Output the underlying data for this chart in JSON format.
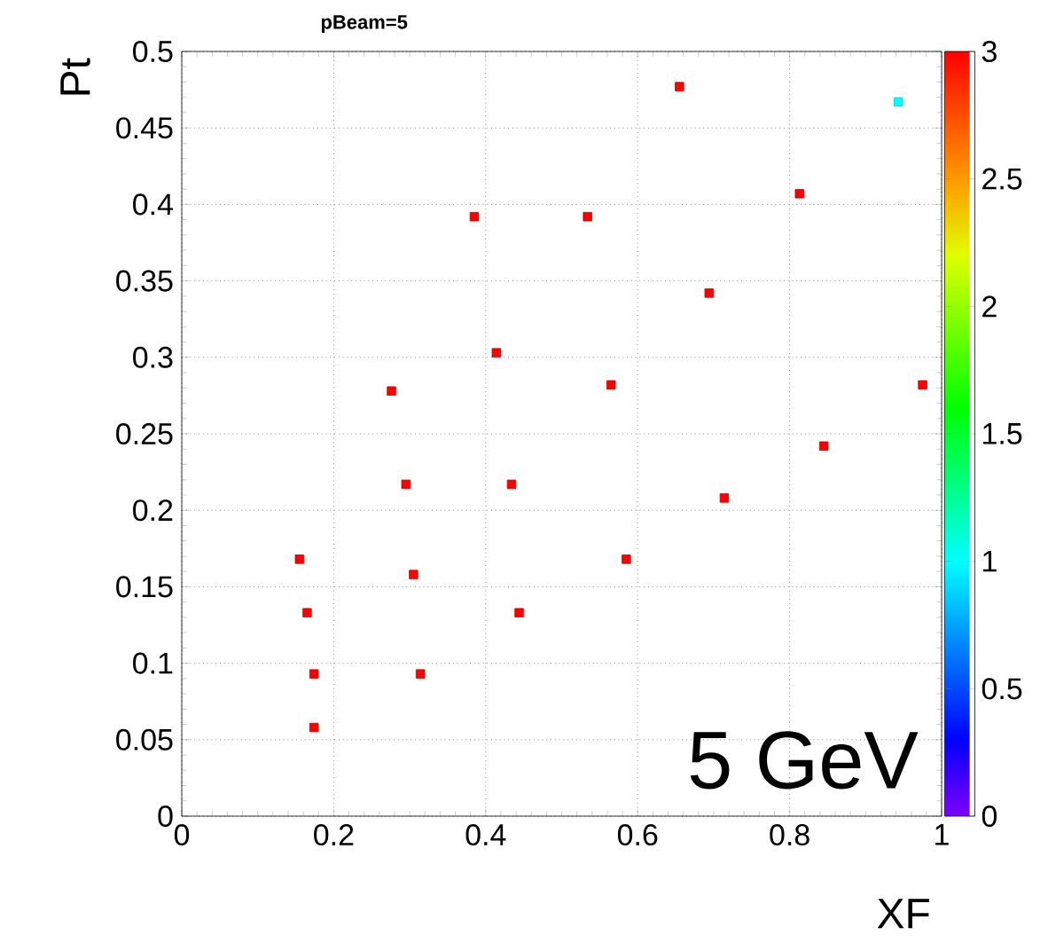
{
  "chart_data": {
    "type": "scatter",
    "title": "pBeam=5",
    "xlabel": "XF",
    "ylabel": "Pt",
    "annotations": [
      "5 GeV"
    ],
    "x": [
      0.655,
      0.943,
      0.813,
      0.385,
      0.534,
      0.694,
      0.414,
      0.276,
      0.565,
      0.975,
      0.845,
      0.295,
      0.434,
      0.714,
      0.155,
      0.585,
      0.305,
      0.165,
      0.444,
      0.174,
      0.314,
      0.174
    ],
    "values": [
      0.477,
      0.467,
      0.407,
      0.392,
      0.392,
      0.342,
      0.303,
      0.278,
      0.282,
      0.282,
      0.242,
      0.217,
      0.217,
      0.208,
      0.168,
      0.168,
      0.158,
      0.133,
      0.133,
      0.093,
      0.093,
      0.058
    ],
    "cvalues": [
      3,
      1,
      3,
      3,
      3,
      3,
      3,
      3,
      3,
      3,
      3,
      3,
      3,
      3,
      3,
      3,
      3,
      3,
      3,
      3,
      3,
      3
    ],
    "xlim": [
      0,
      1
    ],
    "ylim": [
      0,
      0.5
    ],
    "xticks": [
      0,
      0.2,
      0.4,
      0.6,
      0.8,
      1
    ],
    "yticks": [
      0,
      0.05,
      0.1,
      0.15,
      0.2,
      0.25,
      0.3,
      0.35,
      0.4,
      0.45,
      0.5
    ],
    "clim": [
      0,
      3
    ],
    "cticks": [
      0,
      0.5,
      1,
      1.5,
      2,
      2.5,
      3
    ],
    "grid": true,
    "marker": "square"
  }
}
